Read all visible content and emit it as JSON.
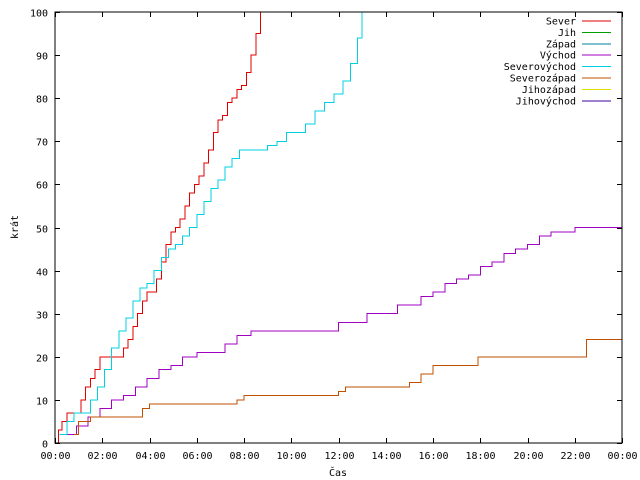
{
  "chart_data": {
    "type": "line",
    "title": "",
    "xlabel": "Čas",
    "ylabel": "krát",
    "xlim": [
      0,
      24
    ],
    "ylim": [
      0,
      100
    ],
    "grid": false,
    "legend_position": "top-right",
    "x_ticks": [
      {
        "value": 0,
        "label": "00:00"
      },
      {
        "value": 2,
        "label": "02:00"
      },
      {
        "value": 4,
        "label": "04:00"
      },
      {
        "value": 6,
        "label": "06:00"
      },
      {
        "value": 8,
        "label": "08:00"
      },
      {
        "value": 10,
        "label": "10:00"
      },
      {
        "value": 12,
        "label": "12:00"
      },
      {
        "value": 14,
        "label": "14:00"
      },
      {
        "value": 16,
        "label": "16:00"
      },
      {
        "value": 18,
        "label": "18:00"
      },
      {
        "value": 20,
        "label": "20:00"
      },
      {
        "value": 22,
        "label": "22:00"
      },
      {
        "value": 24,
        "label": "00:00"
      }
    ],
    "y_ticks": [
      {
        "value": 0,
        "label": "0"
      },
      {
        "value": 10,
        "label": "10"
      },
      {
        "value": 20,
        "label": "20"
      },
      {
        "value": 30,
        "label": "30"
      },
      {
        "value": 40,
        "label": "40"
      },
      {
        "value": 50,
        "label": "50"
      },
      {
        "value": 60,
        "label": "60"
      },
      {
        "value": 70,
        "label": "70"
      },
      {
        "value": 80,
        "label": "80"
      },
      {
        "value": 90,
        "label": "90"
      },
      {
        "value": 100,
        "label": "100"
      }
    ],
    "series": [
      {
        "name": "Sever",
        "color": "#e00000",
        "x": [
          0.05,
          0.15,
          0.3,
          0.5,
          0.7,
          0.9,
          1.1,
          1.3,
          1.5,
          1.7,
          1.9,
          2.2,
          2.5,
          2.7,
          2.9,
          3.1,
          3.3,
          3.5,
          3.7,
          3.9,
          4.1,
          4.3,
          4.5,
          4.7,
          4.9,
          5.1,
          5.3,
          5.5,
          5.7,
          5.9,
          6.1,
          6.3,
          6.5,
          6.7,
          6.9,
          7.1,
          7.3,
          7.5,
          7.7,
          7.9,
          8.1,
          8.3,
          8.5,
          8.7
        ],
        "y": [
          0,
          3,
          5,
          7,
          7,
          7,
          10,
          13,
          15,
          17,
          20,
          20,
          20,
          20,
          22,
          24,
          27,
          30,
          33,
          35,
          35,
          38,
          42,
          46,
          49,
          50,
          52,
          55,
          58,
          60,
          62,
          65,
          68,
          72,
          75,
          76,
          79,
          80,
          82,
          83,
          86,
          90,
          95,
          100
        ]
      },
      {
        "name": "Jih",
        "color": "#00a000",
        "x": [],
        "y": []
      },
      {
        "name": "Západ",
        "color": "#0080a0",
        "x": [],
        "y": []
      },
      {
        "name": "Východ",
        "color": "#a000c0",
        "x": [
          0.4,
          0.9,
          1.4,
          1.9,
          2.4,
          2.9,
          3.4,
          3.9,
          4.4,
          4.9,
          5.4,
          6.0,
          6.6,
          7.2,
          7.7,
          8.3,
          9.0,
          10.0,
          11.0,
          12.0,
          12.6,
          13.2,
          13.8,
          14.5,
          15.0,
          15.5,
          16.0,
          16.5,
          17.0,
          17.5,
          18.0,
          18.5,
          19.0,
          19.5,
          20.0,
          20.5,
          21.0,
          22.0,
          23.0,
          24.0
        ],
        "y": [
          2,
          4,
          6,
          8,
          10,
          11,
          13,
          15,
          17,
          18,
          20,
          21,
          21,
          23,
          25,
          26,
          26,
          26,
          26,
          28,
          28,
          30,
          30,
          32,
          32,
          34,
          35,
          37,
          38,
          39,
          41,
          42,
          44,
          45,
          46,
          48,
          49,
          50,
          50,
          50
        ]
      },
      {
        "name": "Severovýchod",
        "color": "#00d0e0",
        "x": [
          0.2,
          0.5,
          0.8,
          1.2,
          1.5,
          1.8,
          2.1,
          2.4,
          2.7,
          3.0,
          3.3,
          3.6,
          3.9,
          4.2,
          4.5,
          4.8,
          5.1,
          5.4,
          5.7,
          6.0,
          6.3,
          6.6,
          6.9,
          7.2,
          7.5,
          7.8,
          8.2,
          8.6,
          9.0,
          9.4,
          9.8,
          10.2,
          10.6,
          11.0,
          11.4,
          11.8,
          12.2,
          12.5,
          12.8,
          13.0
        ],
        "y": [
          2,
          5,
          7,
          7,
          10,
          13,
          17,
          22,
          26,
          29,
          33,
          36,
          37,
          40,
          43,
          45,
          46,
          48,
          50,
          53,
          56,
          59,
          61,
          64,
          66,
          68,
          68,
          68,
          69,
          70,
          72,
          72,
          74,
          77,
          79,
          81,
          84,
          88,
          94,
          100
        ]
      },
      {
        "name": "Severozápad",
        "color": "#c05000",
        "x": [
          0.8,
          1.0,
          1.5,
          2.0,
          3.0,
          3.7,
          4.0,
          5.0,
          6.0,
          7.0,
          7.7,
          8.0,
          9.0,
          10.0,
          11.0,
          12.0,
          12.3,
          13.0,
          14.0,
          15.0,
          15.5,
          16.0,
          17.0,
          17.9,
          18.5,
          19.0,
          20.0,
          21.0,
          22.0,
          22.5,
          23.0,
          24.0
        ],
        "y": [
          2,
          5,
          6,
          6,
          6,
          8,
          9,
          9,
          9,
          9,
          10,
          11,
          11,
          11,
          11,
          12,
          13,
          13,
          13,
          14,
          16,
          18,
          18,
          20,
          20,
          20,
          20,
          20,
          20,
          24,
          24,
          24
        ]
      },
      {
        "name": "Jihozápad",
        "color": "#e0e000",
        "x": [],
        "y": []
      },
      {
        "name": "Jihovýchod",
        "color": "#4000a0",
        "x": [],
        "y": []
      }
    ]
  }
}
